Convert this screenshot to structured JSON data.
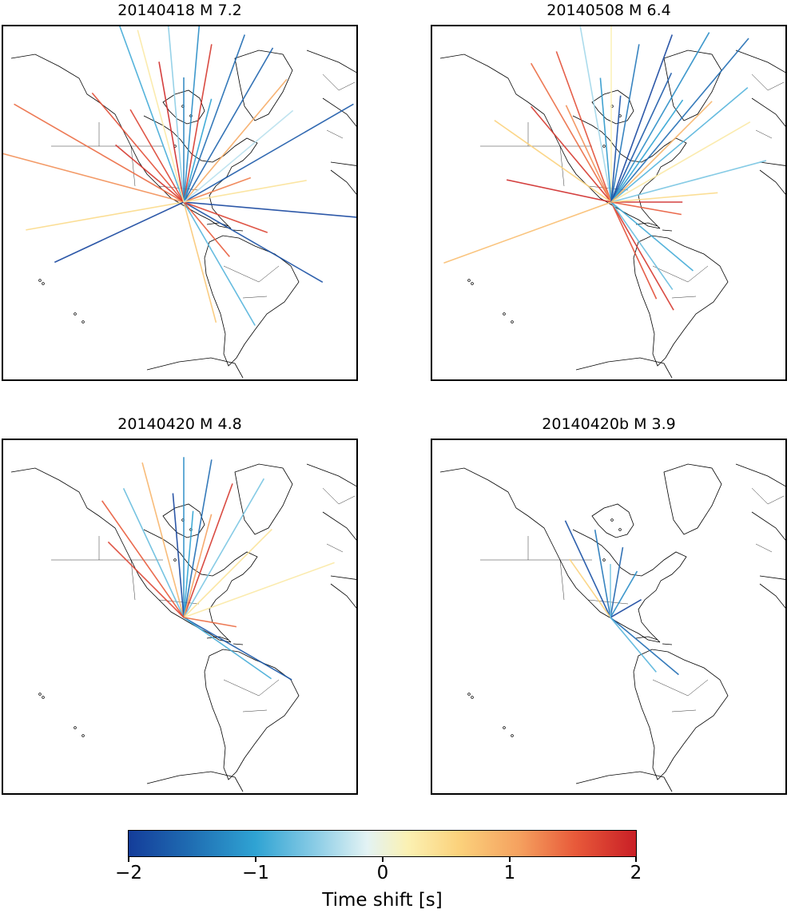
{
  "chart_data": {
    "type": "map-raypaths",
    "panels": [
      {
        "title": "20140418 M 7.2",
        "event": "20140418",
        "magnitude": "M 7.2",
        "rays": [
          {
            "az": 95,
            "d": 0.55,
            "v": -1.9
          },
          {
            "az": 120,
            "d": 0.45,
            "v": -1.8
          },
          {
            "az": 60,
            "d": 0.55,
            "v": -1.7
          },
          {
            "az": 20,
            "d": 0.5,
            "v": -1.5
          },
          {
            "az": 5,
            "d": 0.55,
            "v": -1.2
          },
          {
            "az": -5,
            "d": 0.6,
            "v": -0.5
          },
          {
            "az": -20,
            "d": 0.55,
            "v": -0.9
          },
          {
            "az": -40,
            "d": 0.4,
            "v": 1.6
          },
          {
            "az": -60,
            "d": 0.55,
            "v": 1.4
          },
          {
            "az": -75,
            "d": 0.55,
            "v": 1.2
          },
          {
            "az": -100,
            "d": 0.45,
            "v": 0.5
          },
          {
            "az": -115,
            "d": 0.4,
            "v": -1.9
          },
          {
            "az": 165,
            "d": 0.35,
            "v": 0.7
          },
          {
            "az": 150,
            "d": 0.4,
            "v": -0.8
          },
          {
            "az": 140,
            "d": 0.2,
            "v": 1.5
          },
          {
            "az": 110,
            "d": 0.25,
            "v": 1.7
          },
          {
            "az": 40,
            "d": 0.45,
            "v": 1.0
          },
          {
            "az": 30,
            "d": 0.5,
            "v": -1.6
          },
          {
            "az": 10,
            "d": 0.45,
            "v": 1.8
          },
          {
            "az": -10,
            "d": 0.4,
            "v": 1.9
          },
          {
            "az": -30,
            "d": 0.3,
            "v": 1.7
          },
          {
            "az": -50,
            "d": 0.25,
            "v": 1.8
          },
          {
            "az": 70,
            "d": 0.2,
            "v": 1.3
          },
          {
            "az": 80,
            "d": 0.35,
            "v": 0.4
          },
          {
            "az": 0,
            "d": 0.35,
            "v": -1.3
          },
          {
            "az": 15,
            "d": 0.3,
            "v": -1.0
          },
          {
            "az": 50,
            "d": 0.4,
            "v": -0.3
          },
          {
            "az": -15,
            "d": 0.5,
            "v": 0.3
          }
        ]
      },
      {
        "title": "20140508 M 6.4",
        "event": "20140508",
        "magnitude": "M 6.4",
        "rays": [
          {
            "az": 40,
            "d": 0.6,
            "v": -1.5
          },
          {
            "az": 30,
            "d": 0.55,
            "v": -1.2
          },
          {
            "az": 50,
            "d": 0.5,
            "v": -0.8
          },
          {
            "az": 60,
            "d": 0.45,
            "v": 0.3
          },
          {
            "az": 75,
            "d": 0.45,
            "v": -0.6
          },
          {
            "az": 20,
            "d": 0.5,
            "v": -1.9
          },
          {
            "az": 10,
            "d": 0.45,
            "v": -1.4
          },
          {
            "az": 0,
            "d": 0.5,
            "v": 0.2
          },
          {
            "az": -10,
            "d": 0.5,
            "v": -0.4
          },
          {
            "az": -20,
            "d": 0.45,
            "v": 1.6
          },
          {
            "az": -30,
            "d": 0.45,
            "v": 1.4
          },
          {
            "az": -40,
            "d": 0.35,
            "v": 1.8
          },
          {
            "az": -55,
            "d": 0.4,
            "v": 0.6
          },
          {
            "az": -78,
            "d": 0.3,
            "v": 1.9
          },
          {
            "az": -110,
            "d": 0.5,
            "v": 0.8
          },
          {
            "az": 150,
            "d": 0.35,
            "v": 1.8
          },
          {
            "az": 155,
            "d": 0.3,
            "v": 1.6
          },
          {
            "az": 145,
            "d": 0.3,
            "v": -0.7
          },
          {
            "az": 130,
            "d": 0.3,
            "v": -0.9
          },
          {
            "az": 100,
            "d": 0.2,
            "v": 1.5
          },
          {
            "az": 90,
            "d": 0.2,
            "v": 1.9
          },
          {
            "az": 85,
            "d": 0.3,
            "v": 0.5
          },
          {
            "az": 25,
            "d": 0.4,
            "v": -1.7
          },
          {
            "az": 35,
            "d": 0.35,
            "v": -1.0
          },
          {
            "az": -5,
            "d": 0.35,
            "v": -1.1
          },
          {
            "az": -25,
            "d": 0.3,
            "v": 1.2
          },
          {
            "az": 5,
            "d": 0.3,
            "v": -1.8
          },
          {
            "az": 45,
            "d": 0.4,
            "v": 0.9
          }
        ]
      },
      {
        "title": "20140420 M 4.8",
        "event": "20140420",
        "magnitude": "M 4.8",
        "rays": [
          {
            "az": 10,
            "d": 0.45,
            "v": -1.5
          },
          {
            "az": 0,
            "d": 0.45,
            "v": -1.2
          },
          {
            "az": 20,
            "d": 0.4,
            "v": 1.8
          },
          {
            "az": 30,
            "d": 0.45,
            "v": -0.6
          },
          {
            "az": 45,
            "d": 0.35,
            "v": 0.4
          },
          {
            "az": 70,
            "d": 0.45,
            "v": 0.3
          },
          {
            "az": -15,
            "d": 0.45,
            "v": 0.9
          },
          {
            "az": -25,
            "d": 0.4,
            "v": -0.7
          },
          {
            "az": -35,
            "d": 0.4,
            "v": 1.5
          },
          {
            "az": 120,
            "d": 0.35,
            "v": -1.7
          },
          {
            "az": 125,
            "d": 0.3,
            "v": -0.9
          },
          {
            "az": 100,
            "d": 0.15,
            "v": 1.4
          },
          {
            "az": -5,
            "d": 0.35,
            "v": -1.9
          },
          {
            "az": 5,
            "d": 0.3,
            "v": -1.0
          },
          {
            "az": 15,
            "d": 0.3,
            "v": 1.1
          },
          {
            "az": -45,
            "d": 0.3,
            "v": 1.7
          }
        ]
      },
      {
        "title": "20140420b M 3.9",
        "event": "20140420b",
        "magnitude": "M 3.9",
        "rays": [
          {
            "az": -25,
            "d": 0.3,
            "v": -1.8
          },
          {
            "az": -10,
            "d": 0.25,
            "v": -1.4
          },
          {
            "az": 10,
            "d": 0.2,
            "v": -1.6
          },
          {
            "az": 30,
            "d": 0.15,
            "v": -1.2
          },
          {
            "az": 60,
            "d": 0.1,
            "v": -1.9
          },
          {
            "az": 130,
            "d": 0.25,
            "v": -1.5
          },
          {
            "az": 140,
            "d": 0.2,
            "v": -0.8
          },
          {
            "az": -35,
            "d": 0.2,
            "v": 0.6
          },
          {
            "az": 0,
            "d": 0.15,
            "v": -0.6
          }
        ]
      }
    ],
    "colorbar": {
      "label": "Time shift [s]",
      "ticks": [
        "−2",
        "−1",
        "0",
        "1",
        "2"
      ],
      "tick_values": [
        -2,
        -1,
        0,
        1,
        2
      ],
      "range": [
        -2,
        2
      ],
      "colormap": "RdYlBu_r"
    }
  }
}
